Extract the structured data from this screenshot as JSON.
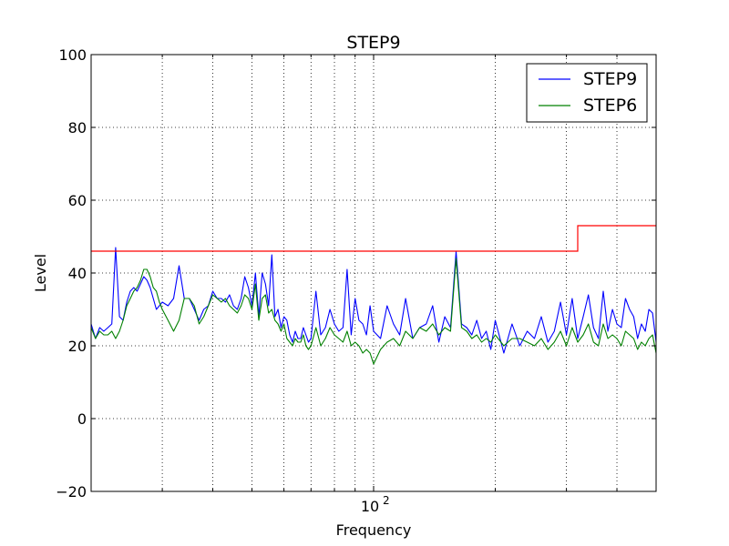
{
  "chart_data": {
    "type": "line",
    "title": "STEP9",
    "xlabel": "Frequency",
    "ylabel": "Level",
    "xscale": "log",
    "xlim": [
      20,
      500
    ],
    "ylim": [
      -20,
      100
    ],
    "yticks": [
      -20,
      0,
      20,
      40,
      60,
      80,
      100
    ],
    "yticklabels": [
      "−20",
      "0",
      "20",
      "40",
      "60",
      "80",
      "100"
    ],
    "xtick_major": [
      100
    ],
    "xtick_major_label_base": "10",
    "xtick_major_label_exp": "2",
    "xgrid_minor": [
      30,
      40,
      50,
      60,
      70,
      80,
      90,
      200,
      300,
      400,
      500
    ],
    "grid": true,
    "legend_position": "top-right",
    "series": [
      {
        "name": "STEP9",
        "color": "#0000ff",
        "x": [
          20,
          20.5,
          21,
          21.5,
          22,
          22.5,
          23,
          23.5,
          24,
          24.5,
          25,
          25.5,
          26,
          26.5,
          27,
          27.5,
          28,
          28.5,
          29,
          29.5,
          30,
          31,
          32,
          33,
          34,
          35,
          36,
          37,
          38,
          39,
          40,
          41,
          42,
          43,
          44,
          45,
          46,
          47,
          48,
          49,
          50,
          51,
          52,
          53,
          54,
          55,
          56,
          57,
          58,
          59,
          60,
          61,
          62,
          63,
          64,
          65,
          66,
          67,
          68,
          69,
          70,
          72,
          74,
          76,
          78,
          80,
          82,
          84,
          86,
          88,
          90,
          92,
          94,
          96,
          98,
          100,
          104,
          108,
          112,
          116,
          120,
          125,
          130,
          135,
          140,
          145,
          150,
          155,
          160,
          165,
          170,
          175,
          180,
          185,
          190,
          195,
          200,
          210,
          220,
          230,
          240,
          250,
          260,
          270,
          280,
          290,
          300,
          310,
          320,
          330,
          340,
          350,
          360,
          370,
          380,
          390,
          400,
          410,
          420,
          430,
          440,
          450,
          460,
          470,
          480,
          490,
          500
        ],
        "y": [
          26,
          22,
          25,
          24,
          25,
          26,
          47,
          28,
          27,
          32,
          35,
          36,
          35,
          37,
          39,
          38,
          36,
          33,
          30,
          31,
          32,
          31,
          33,
          42,
          33,
          33,
          30,
          27,
          30,
          31,
          35,
          33,
          33,
          32,
          34,
          31,
          30,
          33,
          39,
          36,
          31,
          40,
          28,
          40,
          37,
          31,
          45,
          28,
          30,
          25,
          28,
          27,
          23,
          21,
          24,
          22,
          22,
          25,
          23,
          21,
          22,
          35,
          23,
          25,
          30,
          26,
          24,
          25,
          41,
          23,
          33,
          27,
          26,
          23,
          31,
          24,
          22,
          31,
          26,
          23,
          33,
          22,
          25,
          26,
          31,
          21,
          28,
          25,
          46,
          26,
          25,
          23,
          27,
          22,
          24,
          19,
          27,
          18,
          26,
          20,
          24,
          22,
          28,
          21,
          24,
          32,
          23,
          33,
          22,
          28,
          34,
          25,
          22,
          35,
          24,
          30,
          26,
          25,
          33,
          30,
          28,
          22,
          26,
          24,
          30,
          29,
          21
        ],
        "values": [
          26,
          22,
          25,
          24,
          25,
          26,
          47,
          28,
          27,
          32,
          35,
          36,
          35,
          37,
          39,
          38,
          36,
          33,
          30,
          31,
          32,
          31,
          33,
          42,
          33,
          33,
          30,
          27,
          30,
          31,
          35,
          33,
          33,
          32,
          34,
          31,
          30,
          33,
          39,
          36,
          31,
          40,
          28,
          40,
          37,
          31,
          45,
          28,
          30,
          25,
          28,
          27,
          23,
          21,
          24,
          22,
          22,
          25,
          23,
          21,
          22,
          35,
          23,
          25,
          30,
          26,
          24,
          25,
          41,
          23,
          33,
          27,
          26,
          23,
          31,
          24,
          22,
          31,
          26,
          23,
          33,
          22,
          25,
          26,
          31,
          21,
          28,
          25,
          46,
          26,
          25,
          23,
          27,
          22,
          24,
          19,
          27,
          18,
          26,
          20,
          24,
          22,
          28,
          21,
          24,
          32,
          23,
          33,
          22,
          28,
          34,
          25,
          22,
          35,
          24,
          30,
          26,
          25,
          33,
          30,
          28,
          22,
          26,
          24,
          30,
          29,
          21
        ]
      },
      {
        "name": "STEP6",
        "color": "#008000",
        "x": [
          20,
          20.5,
          21,
          21.5,
          22,
          22.5,
          23,
          23.5,
          24,
          24.5,
          25,
          25.5,
          26,
          26.5,
          27,
          27.5,
          28,
          28.5,
          29,
          29.5,
          30,
          31,
          32,
          33,
          34,
          35,
          36,
          37,
          38,
          39,
          40,
          41,
          42,
          43,
          44,
          45,
          46,
          47,
          48,
          49,
          50,
          51,
          52,
          53,
          54,
          55,
          56,
          57,
          58,
          59,
          60,
          61,
          62,
          63,
          64,
          65,
          66,
          67,
          68,
          69,
          70,
          72,
          74,
          76,
          78,
          80,
          82,
          84,
          86,
          88,
          90,
          92,
          94,
          96,
          98,
          100,
          104,
          108,
          112,
          116,
          120,
          125,
          130,
          135,
          140,
          145,
          150,
          155,
          160,
          165,
          170,
          175,
          180,
          185,
          190,
          195,
          200,
          210,
          220,
          230,
          240,
          250,
          260,
          270,
          280,
          290,
          300,
          310,
          320,
          330,
          340,
          350,
          360,
          370,
          380,
          390,
          400,
          410,
          420,
          430,
          440,
          450,
          460,
          470,
          480,
          490,
          500
        ],
        "y": [
          25,
          22,
          24,
          23,
          23,
          24,
          22,
          24,
          27,
          31,
          33,
          35,
          36,
          38,
          41,
          41,
          39,
          36,
          35,
          32,
          30,
          27,
          24,
          27,
          33,
          33,
          31,
          26,
          28,
          31,
          34,
          33,
          32,
          33,
          31,
          30,
          29,
          31,
          34,
          33,
          30,
          37,
          27,
          33,
          34,
          29,
          30,
          27,
          26,
          24,
          26,
          22,
          21,
          20,
          22,
          21,
          21,
          23,
          20,
          19,
          20,
          25,
          20,
          22,
          25,
          23,
          22,
          21,
          24,
          20,
          21,
          20,
          18,
          19,
          18,
          15,
          19,
          21,
          22,
          20,
          24,
          22,
          25,
          24,
          26,
          23,
          25,
          24,
          44,
          25,
          24,
          22,
          23,
          21,
          22,
          21,
          23,
          20,
          22,
          22,
          21,
          20,
          22,
          19,
          21,
          24,
          20,
          25,
          21,
          23,
          26,
          21,
          20,
          26,
          22,
          23,
          22,
          20,
          24,
          23,
          22,
          19,
          21,
          20,
          22,
          23,
          18
        ],
        "values": [
          25,
          22,
          24,
          23,
          23,
          24,
          22,
          24,
          27,
          31,
          33,
          35,
          36,
          38,
          41,
          41,
          39,
          36,
          35,
          32,
          30,
          27,
          24,
          27,
          33,
          33,
          31,
          26,
          28,
          31,
          34,
          33,
          32,
          33,
          31,
          30,
          29,
          31,
          34,
          33,
          30,
          37,
          27,
          33,
          34,
          29,
          30,
          27,
          26,
          24,
          26,
          22,
          21,
          20,
          22,
          21,
          21,
          23,
          20,
          19,
          20,
          25,
          20,
          22,
          25,
          23,
          22,
          21,
          24,
          20,
          21,
          20,
          18,
          19,
          18,
          15,
          19,
          21,
          22,
          20,
          24,
          22,
          25,
          24,
          26,
          23,
          25,
          24,
          44,
          25,
          24,
          22,
          23,
          21,
          22,
          21,
          23,
          20,
          22,
          22,
          21,
          20,
          22,
          19,
          21,
          24,
          20,
          25,
          21,
          23,
          26,
          21,
          20,
          26,
          22,
          23,
          22,
          20,
          24,
          23,
          22,
          19,
          21,
          20,
          22,
          23,
          18
        ]
      }
    ],
    "limit_line": {
      "color": "#ff0000",
      "points": [
        [
          20,
          46
        ],
        [
          320,
          46
        ],
        [
          320,
          53
        ],
        [
          500,
          53
        ]
      ]
    }
  }
}
